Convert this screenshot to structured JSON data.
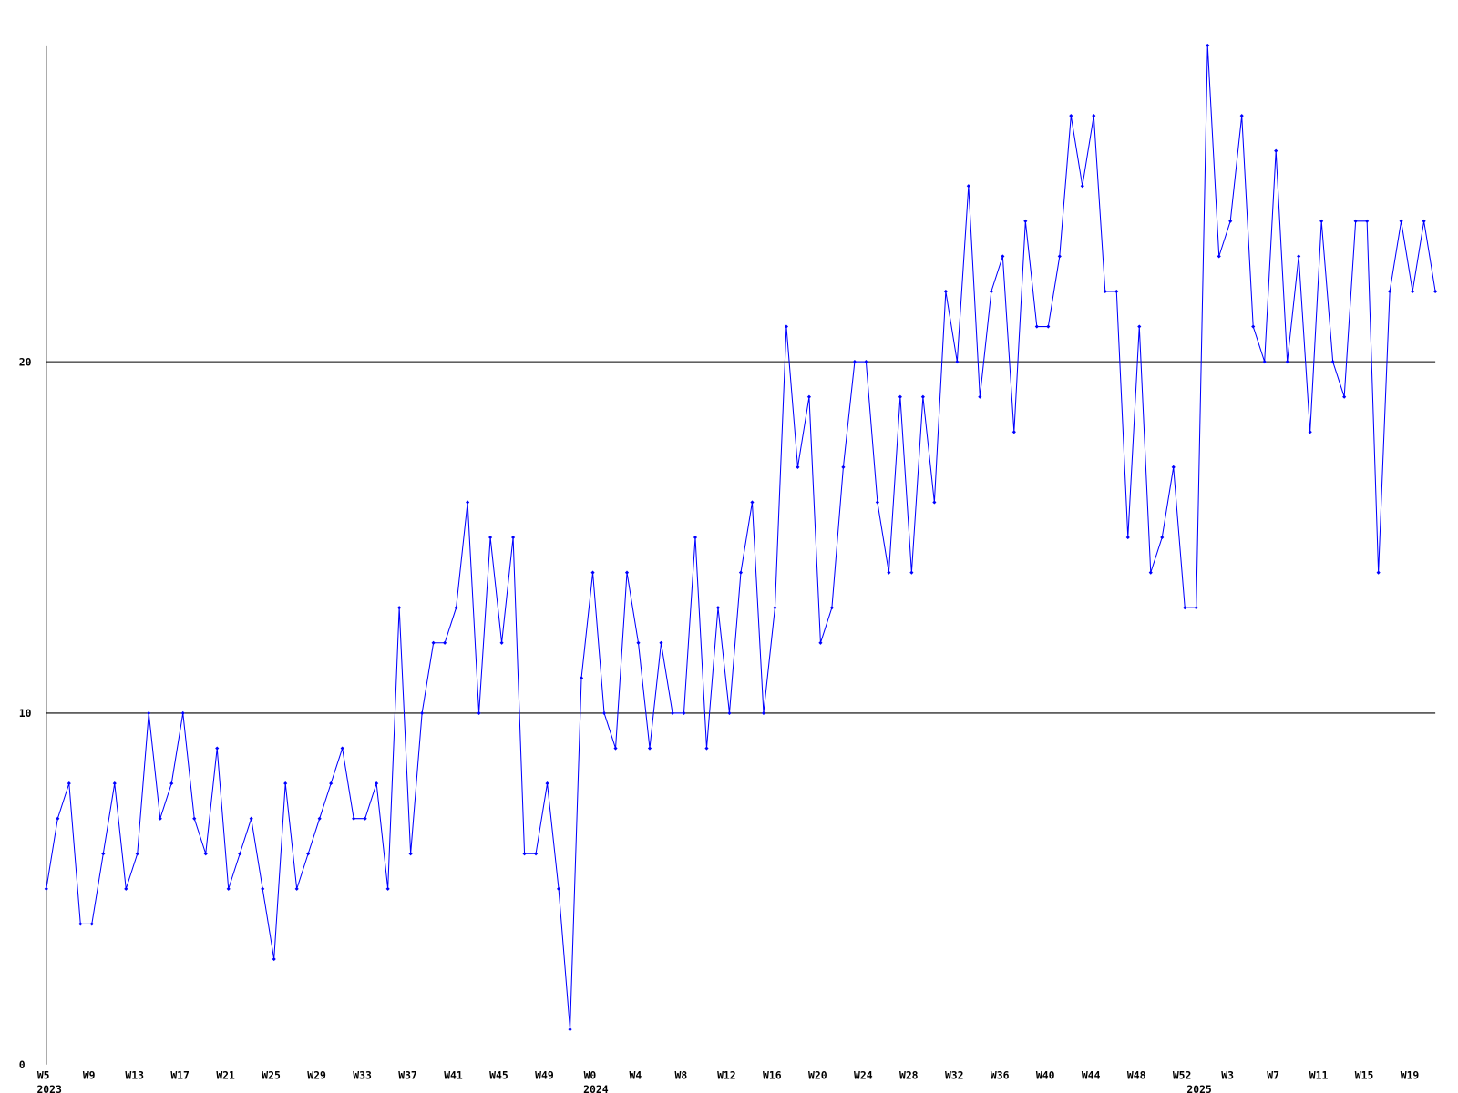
{
  "chart_data": {
    "type": "line",
    "categories": [
      "W5",
      null,
      null,
      null,
      "W9",
      null,
      null,
      null,
      "W13",
      null,
      null,
      null,
      "W17",
      null,
      null,
      null,
      "W21",
      null,
      null,
      null,
      "W25",
      null,
      null,
      null,
      "W29",
      null,
      null,
      null,
      "W33",
      null,
      null,
      null,
      "W37",
      null,
      null,
      null,
      "W41",
      null,
      null,
      null,
      "W45",
      null,
      null,
      null,
      "W49",
      null,
      null,
      null,
      "W0",
      null,
      null,
      null,
      "W4",
      null,
      null,
      null,
      "W8",
      null,
      null,
      null,
      "W12",
      null,
      null,
      null,
      "W16",
      null,
      null,
      null,
      "W20",
      null,
      null,
      null,
      "W24",
      null,
      null,
      null,
      "W28",
      null,
      null,
      null,
      "W32",
      null,
      null,
      null,
      "W36",
      null,
      null,
      null,
      "W40",
      null,
      null,
      null,
      "W44",
      null,
      null,
      null,
      "W48",
      null,
      null,
      null,
      "W52",
      null,
      null,
      null,
      "W3",
      null,
      null,
      null,
      "W7",
      null,
      null,
      null,
      "W11",
      null,
      null,
      null,
      "W15",
      null,
      null,
      null,
      "W19",
      null,
      null
    ],
    "year_labels": [
      "2023",
      null,
      null,
      null,
      null,
      null,
      null,
      null,
      null,
      null,
      null,
      null,
      null,
      null,
      null,
      null,
      null,
      null,
      null,
      null,
      null,
      null,
      null,
      null,
      null,
      null,
      null,
      null,
      null,
      null,
      null,
      null,
      null,
      null,
      null,
      null,
      null,
      null,
      null,
      null,
      null,
      null,
      null,
      null,
      null,
      null,
      null,
      null,
      "2024",
      null,
      null,
      null,
      null,
      null,
      null,
      null,
      null,
      null,
      null,
      null,
      null,
      null,
      null,
      null,
      null,
      null,
      null,
      null,
      null,
      null,
      null,
      null,
      null,
      null,
      null,
      null,
      null,
      null,
      null,
      null,
      null,
      null,
      null,
      null,
      null,
      null,
      null,
      null,
      null,
      null,
      null,
      null,
      null,
      null,
      null,
      null,
      null,
      null,
      null,
      null,
      null,
      "2025",
      null,
      null,
      null,
      null,
      null,
      null,
      null,
      null,
      null,
      null,
      null,
      null,
      null,
      null,
      null,
      null,
      null,
      null,
      null,
      null,
      null
    ],
    "series": [
      {
        "color": "#0000ff",
        "values": [
          5,
          7,
          8,
          4,
          4,
          6,
          8,
          5,
          6,
          10,
          7,
          8,
          10,
          7,
          6,
          9,
          5,
          6,
          7,
          5,
          3,
          8,
          5,
          6,
          7,
          8,
          9,
          7,
          7,
          8,
          5,
          13,
          6,
          10,
          12,
          12,
          13,
          16,
          10,
          15,
          12,
          15,
          6,
          6,
          8,
          5,
          1,
          11,
          14,
          10,
          9,
          14,
          12,
          9,
          12,
          10,
          10,
          15,
          9,
          13,
          10,
          14,
          16,
          10,
          13,
          21,
          17,
          19,
          12,
          13,
          17,
          20,
          20,
          16,
          14,
          19,
          14,
          19,
          16,
          22,
          20,
          25,
          19,
          22,
          23,
          18,
          24,
          21,
          21,
          23,
          27,
          25,
          27,
          22,
          22,
          15,
          21,
          14,
          15,
          17,
          13,
          13,
          29,
          23,
          24,
          27,
          21,
          20,
          26,
          20,
          23,
          18,
          24,
          20,
          19,
          24,
          24,
          14,
          22,
          24,
          22,
          24,
          22
        ]
      }
    ],
    "ylim": [
      0,
      29
    ],
    "yticks": [
      0,
      10,
      20
    ],
    "grid": true
  }
}
